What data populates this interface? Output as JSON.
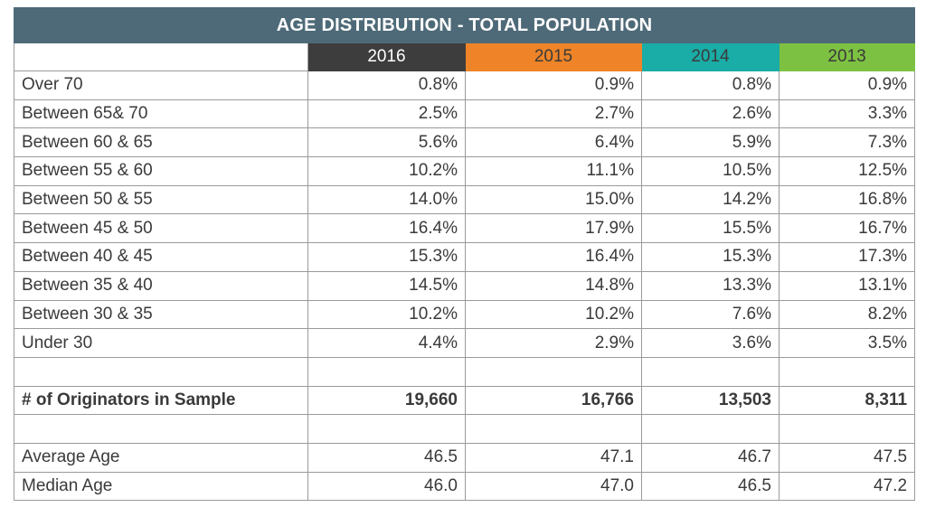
{
  "chart_data": {
    "type": "table",
    "title": "AGE DISTRIBUTION  - TOTAL POPULATION",
    "columns": [
      {
        "label": "2016",
        "color": "#3d3d3d",
        "text_color": "#ffffff"
      },
      {
        "label": "2015",
        "color": "#ee8427",
        "text_color": "#3a3a3a"
      },
      {
        "label": "2014",
        "color": "#1aaca6",
        "text_color": "#3a3a3a"
      },
      {
        "label": "2013",
        "color": "#7dc142",
        "text_color": "#3a3a3a"
      }
    ],
    "rows": [
      {
        "label": "Over 70",
        "values": [
          "0.8%",
          "0.9%",
          "0.8%",
          "0.9%"
        ]
      },
      {
        "label": "Between 65& 70",
        "values": [
          "2.5%",
          "2.7%",
          "2.6%",
          "3.3%"
        ]
      },
      {
        "label": "Between 60 & 65",
        "values": [
          "5.6%",
          "6.4%",
          "5.9%",
          "7.3%"
        ]
      },
      {
        "label": "Between 55 & 60",
        "values": [
          "10.2%",
          "11.1%",
          "10.5%",
          "12.5%"
        ]
      },
      {
        "label": "Between 50 & 55",
        "values": [
          "14.0%",
          "15.0%",
          "14.2%",
          "16.8%"
        ]
      },
      {
        "label": "Between 45 & 50",
        "values": [
          "16.4%",
          "17.9%",
          "15.5%",
          "16.7%"
        ]
      },
      {
        "label": "Between 40 & 45",
        "values": [
          "15.3%",
          "16.4%",
          "15.3%",
          "17.3%"
        ]
      },
      {
        "label": "Between 35 & 40",
        "values": [
          "14.5%",
          "14.8%",
          "13.3%",
          "13.1%"
        ]
      },
      {
        "label": "Between 30 & 35",
        "values": [
          "10.2%",
          "10.2%",
          "7.6%",
          "8.2%"
        ]
      },
      {
        "label": "Under 30",
        "values": [
          "4.4%",
          "2.9%",
          "3.6%",
          "3.5%"
        ]
      },
      {
        "label": "",
        "values": [
          "",
          "",
          "",
          ""
        ]
      },
      {
        "label": "# of Originators in Sample",
        "values": [
          "19,660",
          "16,766",
          "13,503",
          "8,311"
        ],
        "bold": true
      },
      {
        "label": "",
        "values": [
          "",
          "",
          "",
          ""
        ]
      },
      {
        "label": "Average Age",
        "values": [
          "46.5",
          "47.1",
          "46.7",
          "47.5"
        ]
      },
      {
        "label": "Median Age",
        "values": [
          "46.0",
          "47.0",
          "46.5",
          "47.2"
        ]
      }
    ]
  }
}
